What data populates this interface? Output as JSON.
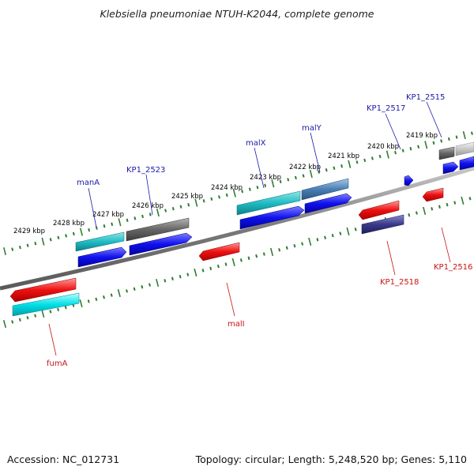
{
  "title": "Klebsiella pneumoniae NTUH-K2044, complete genome",
  "footer": {
    "accession": "Accession: NC_012731",
    "summary": "Topology: circular; Length: 5,248,520 bp; Genes: 5,110"
  },
  "colors": {
    "forward_label": "#1a1aaa",
    "reverse_label": "#cc1111",
    "ticks": "#2f7d2f",
    "backbone": "#8a8a8a"
  },
  "scale_labels": [
    "2429 kbp",
    "2428 kbp",
    "2427 kbp",
    "2426 kbp",
    "2425 kbp",
    "2424 kbp",
    "2423 kbp",
    "2422 kbp",
    "2421 kbp",
    "2420 kbp",
    "2419 kbp"
  ],
  "forward_genes": [
    {
      "name": "manA"
    },
    {
      "name": "KP1_2523"
    },
    {
      "name": "malX"
    },
    {
      "name": "malY"
    },
    {
      "name": "KP1_2517"
    },
    {
      "name": "KP1_2515"
    }
  ],
  "reverse_genes": [
    {
      "name": "fumA"
    },
    {
      "name": "malI"
    },
    {
      "name": "KP1_2518"
    },
    {
      "name": "KP1_2516"
    }
  ]
}
